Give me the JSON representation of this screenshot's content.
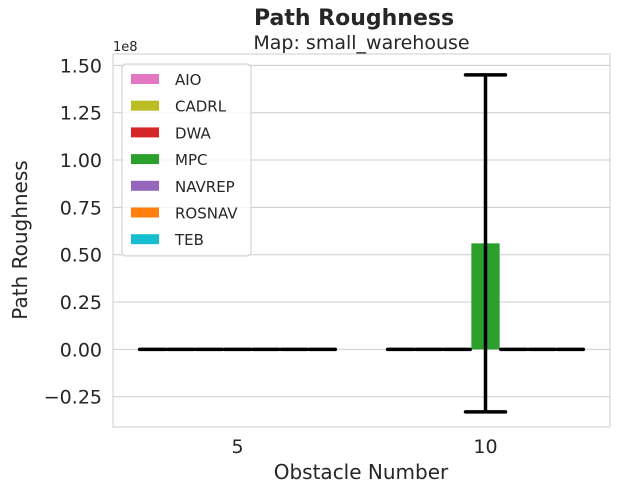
{
  "chart_data": {
    "type": "bar",
    "title": "Path Roughness",
    "subtitle": "Map: small_warehouse",
    "xlabel": "Obstacle Number",
    "ylabel": "Path Roughness",
    "y_offset_label": "1e8",
    "categories": [
      "5",
      "10"
    ],
    "ylim": [
      -0.41,
      1.56
    ],
    "yticks": [
      -0.25,
      0.0,
      0.25,
      0.5,
      0.75,
      1.0,
      1.25,
      1.5
    ],
    "ytick_labels": [
      "−0.25",
      "0.00",
      "0.25",
      "0.50",
      "0.75",
      "1.00",
      "1.25",
      "1.50"
    ],
    "grid": true,
    "legend_position": "top-left",
    "series": [
      {
        "name": "AIO",
        "color": "#e377c2",
        "values": [
          0,
          0
        ],
        "errors": [
          0,
          0
        ]
      },
      {
        "name": "CADRL",
        "color": "#bcbd22",
        "values": [
          0,
          0
        ],
        "errors": [
          0,
          0
        ]
      },
      {
        "name": "DWA",
        "color": "#d62728",
        "values": [
          0,
          0
        ],
        "errors": [
          0,
          0
        ]
      },
      {
        "name": "MPC",
        "color": "#2ca02c",
        "values": [
          0,
          0.56
        ],
        "errors": [
          0,
          0.89
        ]
      },
      {
        "name": "NAVREP",
        "color": "#9467bd",
        "values": [
          0,
          0
        ],
        "errors": [
          0,
          0
        ]
      },
      {
        "name": "ROSNAV",
        "color": "#ff7f0e",
        "values": [
          0,
          0
        ],
        "errors": [
          0,
          0
        ]
      },
      {
        "name": "TEB",
        "color": "#17becf",
        "values": [
          0,
          0
        ],
        "errors": [
          0,
          0
        ]
      }
    ]
  }
}
